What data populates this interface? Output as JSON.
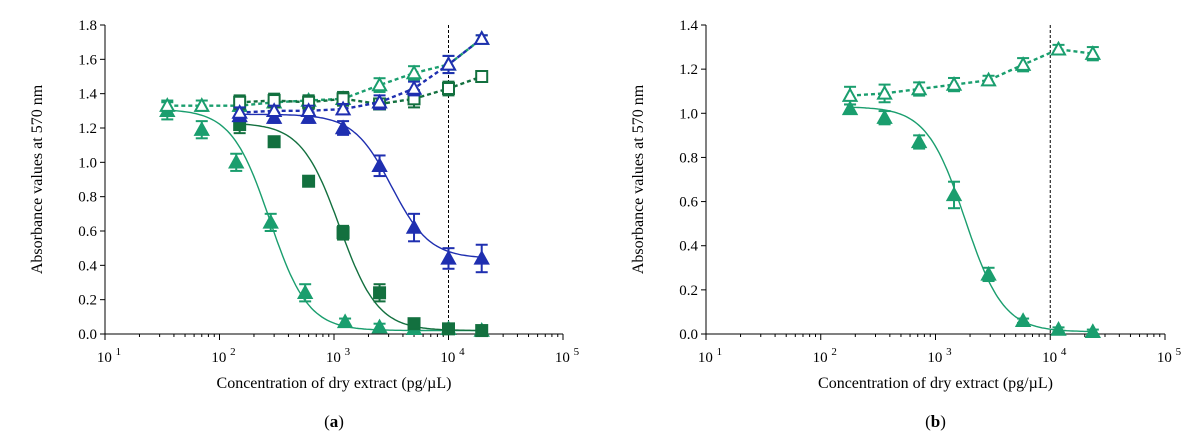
{
  "chart_data": [
    {
      "type": "scatter",
      "panel_label": "(a)",
      "panel_letter": "a",
      "xlabel": "Concentration of dry extract (pg/µL)",
      "ylabel": "Absorbance values at 570 nm",
      "xscale": "log",
      "xlim": [
        10,
        100000
      ],
      "ylim": [
        0,
        1.8
      ],
      "yticks": [
        "0.0",
        "0.2",
        "0.4",
        "0.6",
        "0.8",
        "1.0",
        "1.2",
        "1.4",
        "1.6",
        "1.8"
      ],
      "xticks": [
        {
          "base": "10",
          "exp": "1"
        },
        {
          "base": "10",
          "exp": "2"
        },
        {
          "base": "10",
          "exp": "3"
        },
        {
          "base": "10",
          "exp": "4"
        },
        {
          "base": "10",
          "exp": "5"
        }
      ],
      "vline_x": 10000,
      "grid": false,
      "series": [
        {
          "marker": "triangle",
          "filled": true,
          "color": "#1a9e6e",
          "line": "solid",
          "x": [
            35,
            70,
            140,
            280,
            560,
            1250,
            2500,
            5000,
            10000,
            19500
          ],
          "y": [
            1.3,
            1.19,
            1.0,
            0.65,
            0.24,
            0.07,
            0.04,
            0.03,
            0.03,
            0.02
          ],
          "err": [
            0.05,
            0.05,
            0.05,
            0.05,
            0.05,
            0.02,
            0.02,
            0.01,
            0.01,
            0.01
          ]
        },
        {
          "marker": "square",
          "filled": true,
          "color": "#13703f",
          "line": "solid",
          "x": [
            150,
            300,
            600,
            1200,
            2500,
            5000,
            10000,
            19500
          ],
          "y": [
            1.22,
            1.12,
            0.89,
            0.59,
            0.24,
            0.06,
            0.03,
            0.02
          ],
          "err": [
            0.05,
            0.03,
            0.03,
            0.04,
            0.05,
            0.02,
            0.01,
            0.01
          ]
        },
        {
          "marker": "triangle",
          "filled": true,
          "color": "#1f2fb0",
          "line": "solid",
          "x": [
            150,
            300,
            600,
            1200,
            2500,
            5000,
            10000,
            19500
          ],
          "y": [
            1.27,
            1.26,
            1.26,
            1.2,
            0.98,
            0.62,
            0.44,
            0.44
          ],
          "err": [
            0.03,
            0.03,
            0.03,
            0.04,
            0.06,
            0.08,
            0.06,
            0.08
          ]
        },
        {
          "marker": "triangle",
          "filled": false,
          "color": "#1a9e6e",
          "line": "dashed",
          "x": [
            35,
            70,
            150,
            300,
            600,
            1200,
            2500,
            5000,
            10000,
            19500
          ],
          "y": [
            1.33,
            1.33,
            1.33,
            1.35,
            1.36,
            1.37,
            1.45,
            1.52,
            1.57,
            1.72
          ],
          "err": [
            0.03,
            0.03,
            0.03,
            0.03,
            0.03,
            0.03,
            0.04,
            0.04,
            0.05,
            0.02
          ]
        },
        {
          "marker": "square",
          "filled": false,
          "color": "#13703f",
          "line": "dashed",
          "x": [
            150,
            300,
            600,
            1200,
            2500,
            5000,
            10000,
            19500
          ],
          "y": [
            1.35,
            1.36,
            1.35,
            1.37,
            1.34,
            1.37,
            1.43,
            1.5
          ],
          "err": [
            0.04,
            0.04,
            0.04,
            0.04,
            0.03,
            0.05,
            0.04,
            0.03
          ]
        },
        {
          "marker": "triangle",
          "filled": false,
          "color": "#1f2fb0",
          "line": "dashed",
          "x": [
            150,
            300,
            600,
            1200,
            2500,
            5000,
            10000,
            19500
          ],
          "y": [
            1.29,
            1.3,
            1.3,
            1.31,
            1.35,
            1.43,
            1.57,
            1.72
          ],
          "err": [
            0.03,
            0.03,
            0.03,
            0.03,
            0.04,
            0.04,
            0.05,
            0.02
          ]
        }
      ]
    },
    {
      "type": "scatter",
      "panel_label": "(b)",
      "panel_letter": "b",
      "xlabel": "Concentration of dry extract (pg/µL)",
      "ylabel": "Absorbance values at 570 nm",
      "xscale": "log",
      "xlim": [
        10,
        100000
      ],
      "ylim": [
        0,
        1.4
      ],
      "yticks": [
        "0.0",
        "0.2",
        "0.4",
        "0.6",
        "0.8",
        "1.0",
        "1.2",
        "1.4"
      ],
      "xticks": [
        {
          "base": "10",
          "exp": "1"
        },
        {
          "base": "10",
          "exp": "2"
        },
        {
          "base": "10",
          "exp": "3"
        },
        {
          "base": "10",
          "exp": "4"
        },
        {
          "base": "10",
          "exp": "5"
        }
      ],
      "vline_x": 10000,
      "grid": false,
      "series": [
        {
          "marker": "triangle",
          "filled": true,
          "color": "#1a9e6e",
          "line": "solid",
          "x": [
            180,
            360,
            720,
            1450,
            2900,
            5800,
            11800,
            23500
          ],
          "y": [
            1.02,
            0.98,
            0.87,
            0.63,
            0.27,
            0.06,
            0.02,
            0.01
          ],
          "err": [
            0.02,
            0.03,
            0.03,
            0.06,
            0.03,
            0.01,
            0.01,
            0.01
          ]
        },
        {
          "marker": "triangle",
          "filled": false,
          "color": "#1a9e6e",
          "line": "dashed",
          "x": [
            180,
            360,
            720,
            1450,
            2900,
            5800,
            11800,
            23500
          ],
          "y": [
            1.08,
            1.09,
            1.11,
            1.13,
            1.15,
            1.22,
            1.29,
            1.27
          ],
          "err": [
            0.04,
            0.04,
            0.03,
            0.03,
            0.02,
            0.03,
            0.02,
            0.03
          ]
        }
      ]
    }
  ]
}
